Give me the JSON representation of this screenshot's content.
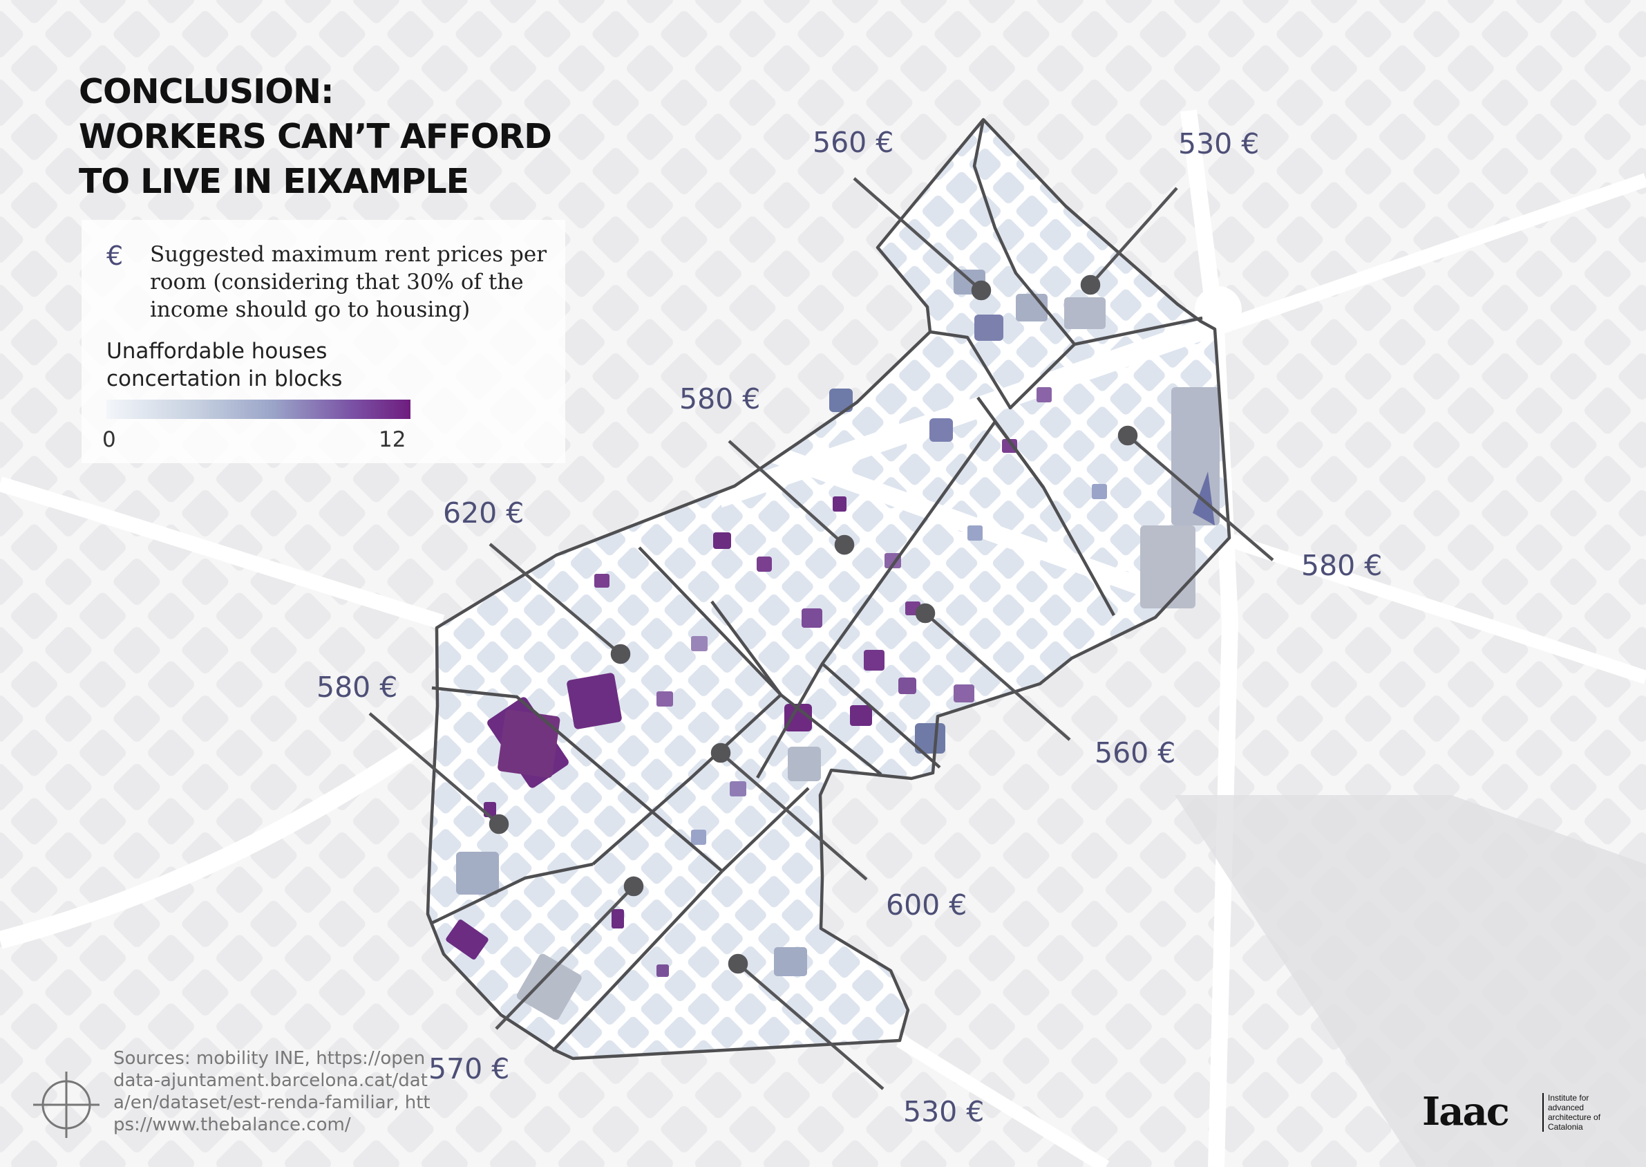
{
  "title": {
    "line1": "CONCLUSION:",
    "line2": "WORKERS CAN’T AFFORD",
    "line3": "TO LIVE IN EIXAMPLE"
  },
  "legend": {
    "symbol": "€",
    "description": "Suggested  maximum rent prices per room (considering that 30% of the income should go to housing)",
    "unaffordable_label": "Unaffordable houses concertation in blocks",
    "ramp_min": "0",
    "ramp_max": "12",
    "ramp_colors": [
      "#f3f6fa",
      "#c6d0e0",
      "#9aa4c8",
      "#7b54a6",
      "#6e1d7e"
    ]
  },
  "prices": [
    {
      "id": "north-west",
      "label": "560 €"
    },
    {
      "id": "north-east",
      "label": "530 €"
    },
    {
      "id": "upper-middle",
      "label": "580 €"
    },
    {
      "id": "east",
      "label": "580 €"
    },
    {
      "id": "west-upper",
      "label": "620 €"
    },
    {
      "id": "west",
      "label": "580 €"
    },
    {
      "id": "south-east",
      "label": "560 €"
    },
    {
      "id": "center-south",
      "label": "600 €"
    },
    {
      "id": "south-west",
      "label": "570 €"
    },
    {
      "id": "south",
      "label": "530 €"
    }
  ],
  "sources": "Sources: mobility INE, https://opendata-ajuntament.barcelona.cat/data/en/dataset/est-renda-familiar, https://www.thebalance.com/",
  "logo": {
    "brand": "Iaac",
    "tagline": "Institute for advanced architecture of Catalonia"
  },
  "colors": {
    "background": "#e9e9ea",
    "district_border": "#4f4f52",
    "label": "#4d4f77",
    "block_low": "#dfe5ee",
    "block_high": "#6e1d7e"
  }
}
